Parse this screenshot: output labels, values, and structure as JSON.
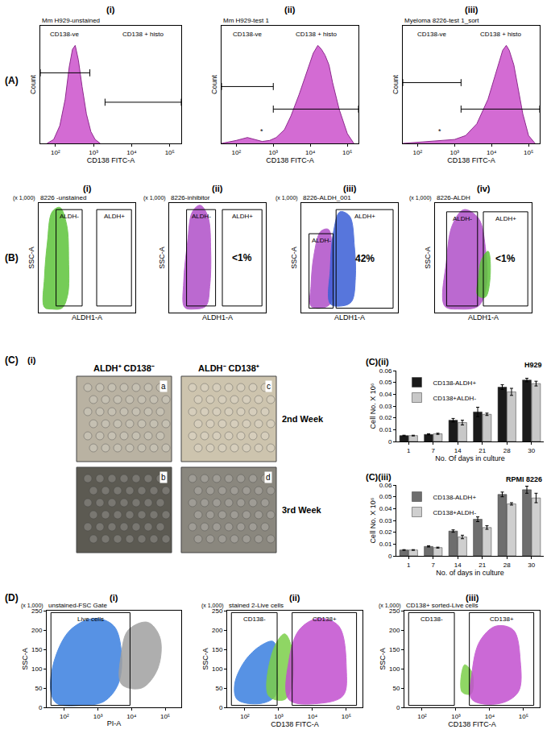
{
  "chart_data": [
    {
      "type": "area",
      "panel": "(A)",
      "sublabel": "(i)",
      "title": "Mm H929-unstained",
      "x_label": "CD138 FITC-A",
      "y_label": "Count",
      "log": "x",
      "grid": false,
      "tick_labels": "x",
      "color": "#d36bd3",
      "x": [
        60,
        90,
        130,
        180,
        230,
        280,
        330,
        400,
        500,
        650,
        850,
        1100,
        1500
      ],
      "values": [
        0,
        4,
        18,
        45,
        78,
        96,
        100,
        85,
        58,
        30,
        12,
        4,
        0
      ],
      "xlim": [
        40,
        200000
      ],
      "xticks": [
        {
          "value": 100,
          "label": "10²"
        },
        {
          "value": 1000,
          "label": "10³"
        },
        {
          "value": 10000,
          "label": "10⁴"
        },
        {
          "value": 100000,
          "label": "10⁵"
        }
      ],
      "ylim": [
        0,
        120
      ],
      "gates": [
        {
          "label": "CD138-ve",
          "x": [
            40,
            800
          ],
          "y": 72
        },
        {
          "label": "CD138 + histo",
          "x": [
            2000,
            200000
          ],
          "y": 42
        }
      ]
    },
    {
      "type": "area",
      "sublabel": "(ii)",
      "title": "Mm H929-test 1",
      "x_label": "CD138 FITC-A",
      "y_label": "Count",
      "log": "x",
      "grid": false,
      "tick_labels": "x",
      "color": "#d36bd3",
      "x": [
        40,
        100,
        200,
        300,
        500,
        800,
        1200,
        2000,
        3000,
        5000,
        8000,
        12000,
        16000,
        20000,
        25000,
        32000,
        40000,
        60000,
        100000,
        150000
      ],
      "values": [
        0,
        3,
        6,
        4,
        2,
        3,
        6,
        14,
        28,
        50,
        72,
        92,
        100,
        96,
        90,
        80,
        62,
        35,
        10,
        0
      ],
      "xlim": [
        40,
        200000
      ],
      "xticks": [
        {
          "value": 100,
          "label": "10²"
        },
        {
          "value": 1000,
          "label": "10³"
        },
        {
          "value": 10000,
          "label": "10⁴"
        },
        {
          "value": 100000,
          "label": "10⁵"
        }
      ],
      "ylim": [
        0,
        120
      ],
      "gates": [
        {
          "label": "CD138-ve",
          "x": [
            40,
            1000
          ],
          "y": 58
        },
        {
          "label": "CD138 + histo",
          "x": [
            1000,
            200000
          ],
          "y": 35
        }
      ],
      "annotations": [
        {
          "text": "*",
          "x": 500,
          "y": 12
        }
      ]
    },
    {
      "type": "area",
      "sublabel": "(iii)",
      "title": "Myeloma 8226-test 1_sort",
      "x_label": "CD138 FITC-A",
      "y_label": "Count",
      "log": "x",
      "grid": false,
      "tick_labels": "x",
      "color": "#d36bd3",
      "x": [
        40,
        200,
        500,
        1000,
        2000,
        4000,
        8000,
        15000,
        20000,
        25000,
        30000,
        40000,
        50000,
        70000,
        100000,
        150000
      ],
      "values": [
        0,
        2,
        3,
        4,
        8,
        20,
        45,
        80,
        95,
        100,
        95,
        80,
        60,
        30,
        8,
        0
      ],
      "xlim": [
        40,
        200000
      ],
      "xticks": [
        {
          "value": 100,
          "label": "10²"
        },
        {
          "value": 1000,
          "label": "10³"
        },
        {
          "value": 10000,
          "label": "10⁴"
        },
        {
          "value": 100000,
          "label": "10⁵"
        }
      ],
      "ylim": [
        0,
        120
      ],
      "gates": [
        {
          "label": "CD138-ve",
          "x": [
            40,
            1500
          ],
          "y": 62
        },
        {
          "label": "CD138 + histo",
          "x": [
            1500,
            200000
          ],
          "y": 35
        }
      ],
      "annotations": [
        {
          "text": "*",
          "x": 400,
          "y": 12
        }
      ]
    },
    {
      "type": "scatter",
      "panel": "(B)",
      "sublabel": "(i)",
      "title": "8226 -unstained",
      "x_label": "ALDH1-A",
      "y_label": "SSC-A",
      "y_note": "(x 1,000)",
      "grid": false,
      "tick_labels": false,
      "xlim": [
        0,
        100
      ],
      "ylim": [
        0,
        250
      ],
      "populations": [
        {
          "color": "#5ec43a",
          "x": [
            6,
            14,
            24,
            30,
            31,
            29,
            22,
            14,
            9,
            6
          ],
          "y": [
            12,
            8,
            10,
            40,
            120,
            200,
            240,
            230,
            160,
            80
          ]
        }
      ],
      "gates": [
        {
          "label": "ALDH-",
          "x": [
            18,
            45
          ],
          "y": [
            15,
            235
          ]
        },
        {
          "label": "ALDH+",
          "x": [
            60,
            96
          ],
          "y": [
            15,
            235
          ]
        }
      ]
    },
    {
      "type": "scatter",
      "sublabel": "(ii)",
      "title": "8226-inhibitor",
      "x_label": "ALDH1-A",
      "y_label": "SSC-A",
      "y_note": "(x 1,000)",
      "grid": false,
      "tick_labels": false,
      "xlim": [
        0,
        100
      ],
      "ylim": [
        0,
        250
      ],
      "populations": [
        {
          "color": "#b04fc8",
          "x": [
            16,
            26,
            38,
            42,
            43,
            40,
            32,
            24,
            19,
            15
          ],
          "y": [
            12,
            8,
            15,
            60,
            140,
            220,
            245,
            230,
            160,
            70
          ]
        }
      ],
      "gates": [
        {
          "label": "ALDH-",
          "x": [
            18,
            48
          ],
          "y": [
            15,
            235
          ]
        },
        {
          "label": "ALDH+",
          "x": [
            55,
            96
          ],
          "y": [
            15,
            235
          ],
          "percent": "<1%"
        }
      ]
    },
    {
      "type": "scatter",
      "sublabel": "(iii)",
      "title": "8226-ALDH_001",
      "x_label": "ALDH1-A",
      "y_label": "SSC-A",
      "y_note": "(x 1,000)",
      "grid": false,
      "tick_labels": false,
      "xlim": [
        0,
        100
      ],
      "ylim": [
        0,
        250
      ],
      "populations": [
        {
          "color": "#b04fc8",
          "x": [
            10,
            20,
            30,
            33,
            32,
            28,
            20,
            13,
            10
          ],
          "y": [
            15,
            10,
            20,
            80,
            150,
            190,
            185,
            130,
            60
          ]
        },
        {
          "color": "#3a5fd6",
          "x": [
            30,
            42,
            52,
            56,
            55,
            50,
            40,
            33,
            30
          ],
          "y": [
            20,
            15,
            25,
            80,
            150,
            220,
            230,
            180,
            100
          ]
        }
      ],
      "gates": [
        {
          "label": "ALDH-",
          "x": [
            8,
            33
          ],
          "y": [
            10,
            180
          ]
        },
        {
          "label": "ALDH+",
          "x": [
            36,
            95
          ],
          "y": [
            10,
            235
          ],
          "percent": "42%"
        }
      ]
    },
    {
      "type": "scatter",
      "sublabel": "(iv)",
      "title": "8226-ALDH",
      "x_label": "ALDH1-A",
      "y_label": "SSC-A",
      "y_note": "(x 1,000)",
      "grid": false,
      "tick_labels": false,
      "xlim": [
        0,
        100
      ],
      "ylim": [
        0,
        250
      ],
      "populations": [
        {
          "color": "#b04fc8",
          "x": [
            10,
            25,
            45,
            53,
            52,
            45,
            30,
            18,
            12
          ],
          "y": [
            15,
            8,
            15,
            60,
            150,
            215,
            235,
            200,
            120
          ]
        },
        {
          "color": "#5ec43a",
          "x": [
            44,
            52,
            57,
            55,
            48,
            45
          ],
          "y": [
            40,
            35,
            80,
            140,
            120,
            80
          ]
        }
      ],
      "gates": [
        {
          "label": "ALDH-",
          "x": [
            12,
            44
          ],
          "y": [
            15,
            230
          ]
        },
        {
          "label": "ALDH+",
          "x": [
            50,
            96
          ],
          "y": [
            15,
            230
          ],
          "percent": "<1%"
        }
      ]
    },
    {
      "type": "image",
      "panel": "(C)",
      "sublabel": "(i)",
      "column_labels": [
        "ALDH⁺ CD138⁻",
        "ALDH⁻ CD138⁺"
      ],
      "row_labels": [
        "2nd Week",
        "3rd Week"
      ],
      "panels": [
        {
          "label": "a",
          "color": "#b9b2a2"
        },
        {
          "label": "c",
          "color": "#cdc4ae"
        },
        {
          "label": "b",
          "color": "#5c5a52"
        },
        {
          "label": "d",
          "color": "#8a877e"
        }
      ]
    },
    {
      "type": "bar",
      "sublabel": "(C)(ii)",
      "title": "H929",
      "x_label": "No. Of days in culture",
      "y_label": "Cell No. X 10⁶",
      "grid": false,
      "legend": "upper left",
      "categories": [
        "1",
        "7",
        "14",
        "21",
        "28",
        "30"
      ],
      "ylim": [
        0,
        0.06
      ],
      "yticks": [
        0,
        0.01,
        0.02,
        0.03,
        0.04,
        0.05,
        0.06
      ],
      "series": [
        {
          "name": "CD138-ALDH+",
          "color": "#1a1a1a",
          "values": [
            0.005,
            0.006,
            0.018,
            0.025,
            0.046,
            0.052
          ],
          "error": [
            0.0003,
            0.0005,
            0.0015,
            0.004,
            0.002,
            0.0015
          ]
        },
        {
          "name": "CD138+ALDH-",
          "color": "#c8c8c8",
          "values": [
            0.005,
            0.0065,
            0.016,
            0.023,
            0.042,
            0.049
          ],
          "error": [
            0.0003,
            0.0005,
            0.002,
            0.001,
            0.003,
            0.002
          ]
        }
      ]
    },
    {
      "type": "bar",
      "sublabel": "(C)(iii)",
      "title": "RPMI 8226",
      "x_label": "No. of days in culture",
      "y_label": "Cell No. X 10⁶",
      "grid": false,
      "legend": "upper left",
      "categories": [
        "1",
        "7",
        "14",
        "21",
        "28",
        "30"
      ],
      "ylim": [
        0,
        0.06
      ],
      "yticks": [
        0,
        0.01,
        0.02,
        0.03,
        0.04,
        0.05,
        0.06
      ],
      "series": [
        {
          "name": "CD138-ALDH+",
          "color": "#6e6e6e",
          "values": [
            0.005,
            0.008,
            0.021,
            0.031,
            0.052,
            0.056
          ],
          "error": [
            0.0003,
            0.0005,
            0.001,
            0.002,
            0.002,
            0.003
          ]
        },
        {
          "name": "CD138+ALDH-",
          "color": "#cfcfcf",
          "values": [
            0.005,
            0.007,
            0.016,
            0.024,
            0.044,
            0.049
          ],
          "error": [
            0.0003,
            0.0004,
            0.0015,
            0.0015,
            0.001,
            0.004
          ]
        }
      ]
    },
    {
      "type": "scatter",
      "panel": "(D)",
      "sublabel": "(i)",
      "title": "unstained-FSC Gate",
      "x_label": "PI-A",
      "y_label": "SSC-A",
      "y_note": "(x 1,000)",
      "log": "x",
      "grid": false,
      "xlim": [
        30,
        300000
      ],
      "xticks": [
        {
          "value": 100,
          "label": "10²"
        },
        {
          "value": 1000,
          "label": "10³"
        },
        {
          "value": 10000,
          "label": "10⁴"
        },
        {
          "value": 100000,
          "label": "10⁵"
        }
      ],
      "ylim": [
        0,
        250
      ],
      "yticks": [
        0,
        50,
        100,
        150,
        200,
        250
      ],
      "populations": [
        {
          "color": "#3a7fe0",
          "x": [
            60,
            300,
            1500,
            4000,
            5000,
            3000,
            800,
            150,
            50,
            40
          ],
          "y": [
            10,
            5,
            15,
            60,
            140,
            210,
            230,
            200,
            120,
            40
          ]
        },
        {
          "color": "#a0a0a0",
          "x": [
            5000,
            20000,
            60000,
            70000,
            30000,
            8000,
            5000
          ],
          "y": [
            60,
            50,
            100,
            180,
            220,
            200,
            140
          ]
        }
      ],
      "gates": [
        {
          "label": "Live cells",
          "x": [
            40,
            9000
          ],
          "y": [
            5,
            245
          ]
        }
      ]
    },
    {
      "type": "scatter",
      "sublabel": "(ii)",
      "title": "stained 2-Live cells",
      "x_label": "CD138 FITC-A",
      "y_label": "SSC-A",
      "y_note": "(x 1,000)",
      "log": "x",
      "grid": false,
      "xlim": [
        30,
        300000
      ],
      "xticks": [
        {
          "value": 100,
          "label": "10²"
        },
        {
          "value": 1000,
          "label": "10³"
        },
        {
          "value": 10000,
          "label": "10⁴"
        },
        {
          "value": 100000,
          "label": "10⁵"
        }
      ],
      "ylim": [
        0,
        250
      ],
      "yticks": [
        0,
        50,
        100,
        150,
        200,
        250
      ],
      "populations": [
        {
          "color": "#3a7fe0",
          "x": [
            60,
            300,
            800,
            900,
            700,
            300,
            100,
            50
          ],
          "y": [
            20,
            10,
            30,
            100,
            170,
            160,
            120,
            60
          ]
        },
        {
          "color": "#7ccf4a",
          "x": [
            500,
            1500,
            2500,
            2500,
            1500,
            700
          ],
          "y": [
            30,
            20,
            60,
            150,
            190,
            150
          ]
        },
        {
          "color": "#c24fcf",
          "x": [
            2000,
            15000,
            80000,
            100000,
            60000,
            15000,
            4000,
            2000
          ],
          "y": [
            20,
            10,
            30,
            100,
            210,
            230,
            200,
            120
          ]
        }
      ],
      "gates": [
        {
          "label": "CD138-",
          "x": [
            40,
            900
          ],
          "y": [
            5,
            245
          ]
        },
        {
          "label": "CD138+",
          "x": [
            2500,
            200000
          ],
          "y": [
            5,
            245
          ]
        }
      ]
    },
    {
      "type": "scatter",
      "sublabel": "(iii)",
      "title": "CD138+ sorted-Live cells",
      "x_label": "CD138 FITC-A",
      "y_label": "SSC-A",
      "y_note": "(x 1,000)",
      "log": "x",
      "grid": false,
      "xlim": [
        30,
        300000
      ],
      "xticks": [
        {
          "value": 100,
          "label": "10²"
        },
        {
          "value": 1000,
          "label": "10³"
        },
        {
          "value": 10000,
          "label": "10⁴"
        },
        {
          "value": 100000,
          "label": "10⁵"
        }
      ],
      "ylim": [
        0,
        250
      ],
      "yticks": [
        0,
        50,
        100,
        150,
        200,
        250
      ],
      "populations": [
        {
          "color": "#7ccf4a",
          "x": [
            1500,
            2800,
            3000,
            1800
          ],
          "y": [
            40,
            35,
            90,
            110
          ]
        },
        {
          "color": "#c24fcf",
          "x": [
            3000,
            20000,
            70000,
            80000,
            50000,
            15000,
            5000,
            3000
          ],
          "y": [
            20,
            10,
            40,
            120,
            200,
            210,
            170,
            90
          ]
        }
      ],
      "gates": [
        {
          "label": "CD138-",
          "x": [
            40,
            900
          ],
          "y": [
            5,
            245
          ]
        },
        {
          "label": "CD138+",
          "x": [
            2500,
            200000
          ],
          "y": [
            5,
            245
          ]
        }
      ]
    }
  ]
}
